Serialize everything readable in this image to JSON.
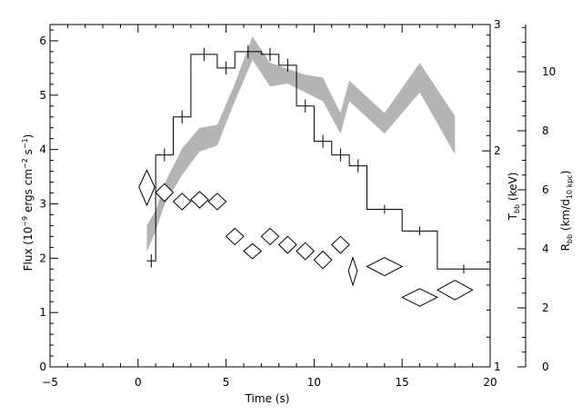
{
  "chart_data": {
    "type": "line",
    "xlabel": "Time (s)",
    "ylabel_left": {
      "base": "Flux (10",
      "exp1": "−9",
      "mid": " ergs cm",
      "exp2": "−2",
      "mid2": " s",
      "exp3": "−1",
      "end": ")"
    },
    "ylabel_right1": {
      "base": "T",
      "sub": "bb",
      "end": " (keV)"
    },
    "ylabel_right2": {
      "base": "R",
      "sub": "bb",
      "mid": " (km/d",
      "sub2": "10 kpc",
      "end": ")"
    },
    "xlim": [
      -5,
      20
    ],
    "ylim_left": [
      0,
      6.3
    ],
    "ylim_right1_log": [
      1,
      3
    ],
    "ylim_right2": [
      0,
      11.6
    ],
    "x_ticks": [
      "−5",
      "0",
      "5",
      "10",
      "15",
      "20"
    ],
    "left_ticks": [
      "0",
      "1",
      "2",
      "3",
      "4",
      "5",
      "6"
    ],
    "right1_ticks": [
      "1",
      "2",
      "3"
    ],
    "right2_ticks": [
      "0",
      "2",
      "4",
      "6",
      "8",
      "10"
    ],
    "flux_histogram": {
      "bins": [
        {
          "x0": 0.5,
          "x1": 1.0,
          "y": 1.95,
          "err": 0.12
        },
        {
          "x0": 1.0,
          "x1": 2.0,
          "y": 3.9,
          "err": 0.12
        },
        {
          "x0": 2.0,
          "x1": 3.0,
          "y": 4.6,
          "err": 0.12
        },
        {
          "x0": 3.0,
          "x1": 4.5,
          "y": 5.75,
          "err": 0.12
        },
        {
          "x0": 4.5,
          "x1": 5.5,
          "y": 5.5,
          "err": 0.12
        },
        {
          "x0": 5.5,
          "x1": 7.0,
          "y": 5.8,
          "err": 0.12
        },
        {
          "x0": 7.0,
          "x1": 8.0,
          "y": 5.75,
          "err": 0.12
        },
        {
          "x0": 8.0,
          "x1": 9.0,
          "y": 5.55,
          "err": 0.12
        },
        {
          "x0": 9.0,
          "x1": 10.0,
          "y": 4.8,
          "err": 0.12
        },
        {
          "x0": 10.0,
          "x1": 11.0,
          "y": 4.15,
          "err": 0.12
        },
        {
          "x0": 11.0,
          "x1": 12.0,
          "y": 3.9,
          "err": 0.12
        },
        {
          "x0": 12.0,
          "x1": 13.0,
          "y": 3.7,
          "err": 0.12
        },
        {
          "x0": 13.0,
          "x1": 15.0,
          "y": 2.9,
          "err": 0.08
        },
        {
          "x0": 15.0,
          "x1": 17.0,
          "y": 2.5,
          "err": 0.08
        },
        {
          "x0": 17.0,
          "x1": 20.0,
          "y": 1.8,
          "err": 0.08
        }
      ]
    },
    "temperature_diamonds": [
      {
        "t": 0.5,
        "kT": 1.78,
        "dt": 0.45,
        "dkT": 0.1
      },
      {
        "t": 1.5,
        "kT": 1.75,
        "dt": 0.5,
        "dkT": 0.05
      },
      {
        "t": 2.5,
        "kT": 1.7,
        "dt": 0.5,
        "dkT": 0.045
      },
      {
        "t": 3.5,
        "kT": 1.71,
        "dt": 0.5,
        "dkT": 0.045
      },
      {
        "t": 4.5,
        "kT": 1.7,
        "dt": 0.5,
        "dkT": 0.045
      },
      {
        "t": 5.5,
        "kT": 1.52,
        "dt": 0.5,
        "dkT": 0.04
      },
      {
        "t": 6.5,
        "kT": 1.45,
        "dt": 0.5,
        "dkT": 0.035
      },
      {
        "t": 7.5,
        "kT": 1.52,
        "dt": 0.5,
        "dkT": 0.04
      },
      {
        "t": 8.5,
        "kT": 1.48,
        "dt": 0.5,
        "dkT": 0.04
      },
      {
        "t": 9.5,
        "kT": 1.45,
        "dt": 0.5,
        "dkT": 0.04
      },
      {
        "t": 10.5,
        "kT": 1.41,
        "dt": 0.5,
        "dkT": 0.04
      },
      {
        "t": 11.5,
        "kT": 1.48,
        "dt": 0.5,
        "dkT": 0.04
      },
      {
        "t": 12.2,
        "kT": 1.36,
        "dt": 0.25,
        "dkT": 0.06
      },
      {
        "t": 14.0,
        "kT": 1.38,
        "dt": 1.0,
        "dkT": 0.04
      },
      {
        "t": 16.0,
        "kT": 1.25,
        "dt": 1.0,
        "dkT": 0.035
      },
      {
        "t": 18.0,
        "kT": 1.28,
        "dt": 1.0,
        "dkT": 0.04
      }
    ],
    "radius_band": {
      "x": [
        0.5,
        1.0,
        1.5,
        2.5,
        3.5,
        4.5,
        5.5,
        6.5,
        7.5,
        8.5,
        9.5,
        10.5,
        11.5,
        12.0,
        14.0,
        16.0,
        18.0
      ],
      "upper": [
        4.8,
        5.3,
        6.2,
        7.4,
        8.1,
        8.2,
        9.6,
        11.2,
        10.3,
        10.1,
        9.9,
        9.8,
        8.6,
        9.7,
        8.6,
        10.3,
        8.5
      ],
      "lower": [
        3.9,
        4.6,
        5.5,
        6.5,
        7.3,
        7.5,
        9.0,
        10.4,
        9.5,
        9.6,
        9.3,
        9.0,
        7.9,
        9.0,
        7.9,
        9.3,
        7.2
      ]
    },
    "colors": {
      "band": "#b4b4b4",
      "line": "#000000"
    }
  }
}
